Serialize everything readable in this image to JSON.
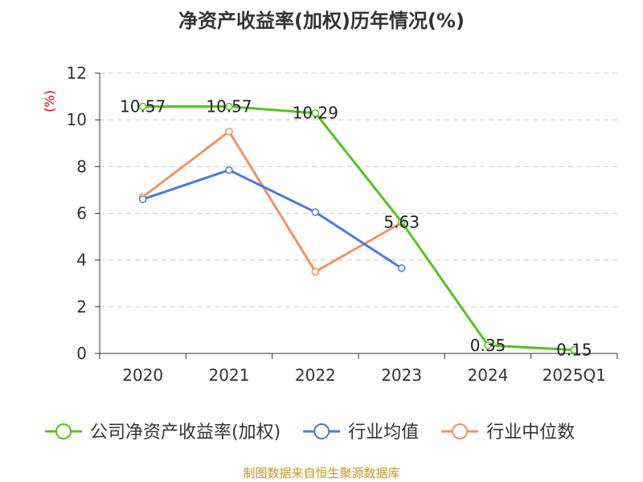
{
  "chart_data": {
    "type": "line",
    "title": "净资产收益率(加权)历年情况(%)",
    "ylabel_unit": "(%)",
    "categories": [
      "2020",
      "2021",
      "2022",
      "2023",
      "2024",
      "2025Q1"
    ],
    "ylim": [
      0,
      12
    ],
    "yticks": [
      0,
      2,
      4,
      6,
      8,
      10,
      12
    ],
    "grid": true,
    "legend_position": "bottom",
    "series": [
      {
        "name": "公司净资产收益率(加权)",
        "color": "#52c41a",
        "values": [
          10.57,
          10.57,
          10.29,
          5.63,
          0.35,
          0.15
        ],
        "labels": [
          "10.57",
          "10.57",
          "10.29",
          "5.63",
          "0.35",
          "0.15"
        ]
      },
      {
        "name": "行业均值",
        "color": "#4a7bd8",
        "values": [
          6.6,
          7.85,
          6.05,
          3.65,
          null,
          null
        ]
      },
      {
        "name": "行业中位数",
        "color": "#f5925f",
        "values": [
          6.7,
          9.5,
          3.5,
          5.6,
          null,
          null
        ]
      }
    ]
  },
  "source": "制图数据来自恒生聚源数据库"
}
